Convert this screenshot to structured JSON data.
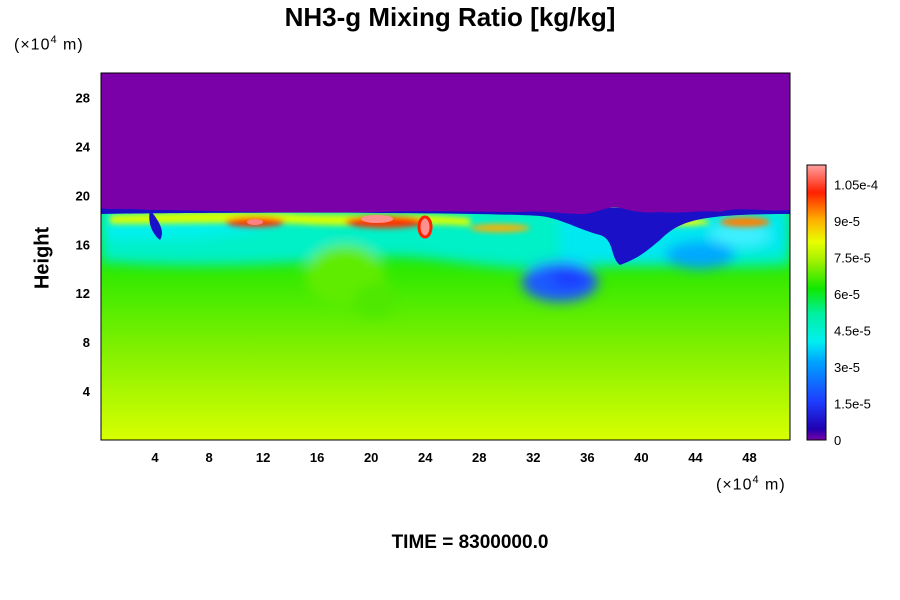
{
  "chart_data": {
    "type": "heatmap",
    "title": "NH3-g Mixing Ratio [kg/kg]",
    "ylabel": "Height",
    "xlabel": "",
    "x_unit": "(×10⁴ m)",
    "y_unit": "(×10⁴ m)",
    "x_ticks": [
      4,
      8,
      12,
      16,
      20,
      24,
      28,
      32,
      36,
      40,
      44,
      48
    ],
    "y_ticks": [
      4,
      8,
      12,
      16,
      20,
      24,
      28
    ],
    "xlim": [
      0,
      51
    ],
    "ylim": [
      0,
      30
    ],
    "colorbar": {
      "range": [
        0,
        0.000113
      ],
      "tick_labels": [
        "0",
        "1.5e-5",
        "3e-5",
        "4.5e-5",
        "6e-5",
        "7.5e-5",
        "9e-5",
        "1.05e-4"
      ],
      "tick_values": [
        0,
        1.5e-05,
        3e-05,
        4.5e-05,
        6e-05,
        7.5e-05,
        9e-05,
        0.000105
      ],
      "colors": [
        "#7a00a8",
        "#1a10c8",
        "#1e5aff",
        "#00e6ff",
        "#00f0a0",
        "#10e800",
        "#a0f000",
        "#e8ff00",
        "#ffb000",
        "#ff3000",
        "#ff9090"
      ]
    },
    "field_regions": [
      {
        "region": "upper atmosphere above ~18.5",
        "value": 0
      },
      {
        "region": "surface 0-4",
        "value": 7.2e-05
      },
      {
        "region": "mid levels 4-12",
        "value": 5.8e-05
      },
      {
        "region": "12-17 general",
        "value": 4.5e-05
      },
      {
        "region": "band near 17-18",
        "value": 9e-05
      },
      {
        "region": "hot spots near x=11,20,24 at y~17",
        "value": 0.000108
      },
      {
        "region": "depleted pocket x 31-36, y 13-15",
        "value": 2.5e-05
      }
    ]
  },
  "time_label": "TIME = 8300000.0"
}
